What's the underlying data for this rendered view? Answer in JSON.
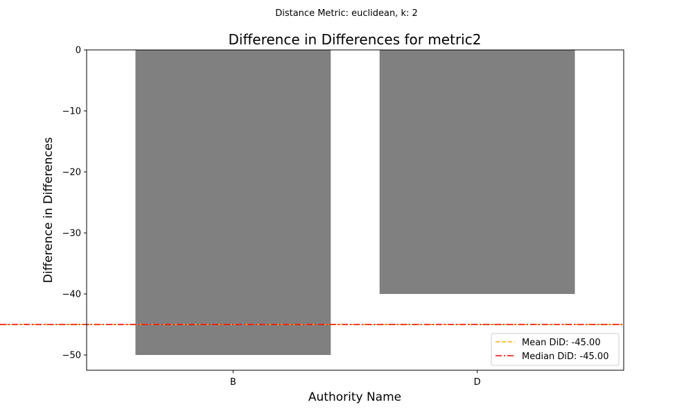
{
  "suptitle": "Distance Metric: euclidean, k: 2",
  "chart_data": {
    "type": "bar",
    "title": "Difference in Differences for metric2",
    "xlabel": "Authority Name",
    "ylabel": "Difference in Differences",
    "categories": [
      "B",
      "D"
    ],
    "values": [
      -50,
      -40
    ],
    "ylim": [
      -52.5,
      0
    ],
    "yticks": [
      0,
      -10,
      -20,
      -30,
      -40,
      -50
    ],
    "ytick_labels": [
      "0",
      "−10",
      "−20",
      "−30",
      "−40",
      "−50"
    ],
    "bar_color": "#808080",
    "grid": false,
    "legend_position": "lower right",
    "reference_lines": [
      {
        "label": "Mean DiD: -45.00",
        "value": -45.0,
        "color": "#ffa500",
        "style": "dashed"
      },
      {
        "label": "Median DiD: -45.00",
        "value": -45.0,
        "color": "#ff0000",
        "style": "dashdot"
      }
    ]
  }
}
